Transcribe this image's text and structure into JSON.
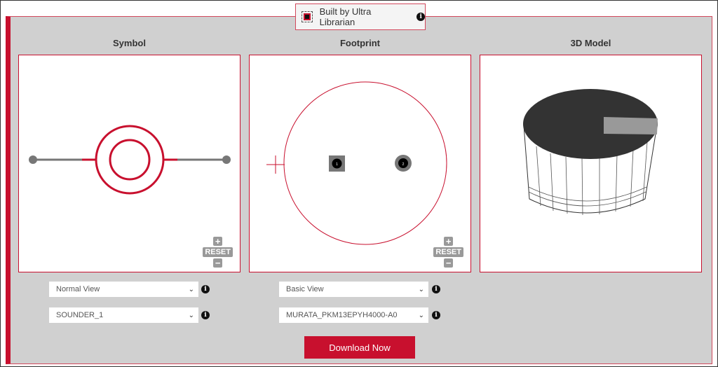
{
  "badge": {
    "label": "Built by Ultra Librarian",
    "icon": "chip-icon"
  },
  "titles": {
    "symbol": "Symbol",
    "footprint": "Footprint",
    "model": "3D Model"
  },
  "zoom": {
    "reset": "RESET",
    "plus": "+",
    "minus": "−"
  },
  "symbol": {
    "view": "Normal View",
    "part": "SOUNDER_1"
  },
  "footprint": {
    "view": "Basic View",
    "part": "MURATA_PKM13EPYH4000-A0",
    "pads": [
      "1",
      "2"
    ]
  },
  "download": "Download Now",
  "colors": {
    "accent": "#c8102e",
    "panel": "#d0d0d0"
  }
}
